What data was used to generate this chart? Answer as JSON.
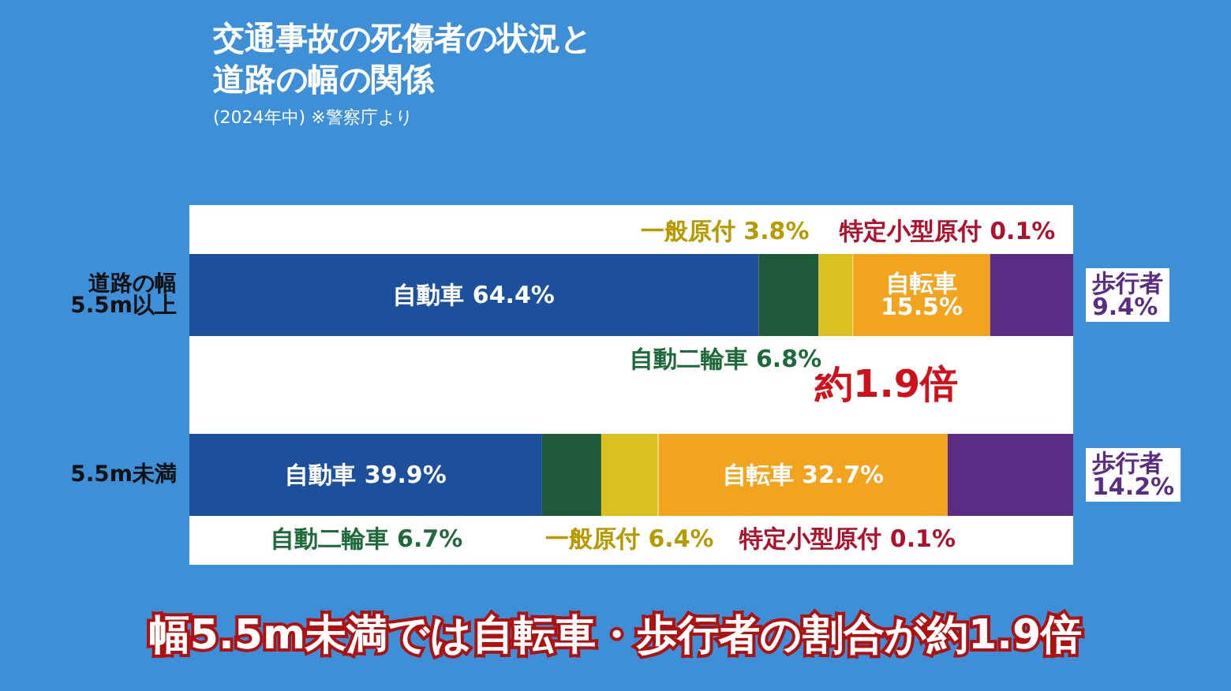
{
  "chart_data": {
    "type": "bar",
    "title": "交通事故の死傷者の状況と道路の幅の関係",
    "subtitle": "(2024年中) ※警察庁より",
    "categories": [
      "道路の幅\n5.5m以上",
      "5.5m未満"
    ],
    "stacked": true,
    "orientation": "horizontal",
    "legend": false,
    "tick_labels": "y",
    "series": [
      {
        "name": "自動車",
        "color": "#1c4f9c",
        "values": [
          64.4,
          39.9
        ],
        "value_labels": [
          "64.4%",
          "39.9%"
        ]
      },
      {
        "name": "自動二輪車",
        "color": "#1e5a3a",
        "values": [
          6.8,
          6.7
        ],
        "value_labels": [
          "6.8%",
          "6.7%"
        ]
      },
      {
        "name": "一般原付",
        "color": "#dcc022",
        "values": [
          3.8,
          6.4
        ],
        "value_labels": [
          "3.8%",
          "6.4%"
        ]
      },
      {
        "name": "特定小型原付",
        "color": "#f2e08a",
        "values": [
          0.1,
          0.1
        ],
        "value_labels": [
          "0.1%",
          "0.1%"
        ]
      },
      {
        "name": "自転車",
        "color": "#f2a41e",
        "values": [
          15.5,
          32.7
        ],
        "value_labels": [
          "15.5%",
          "32.7%"
        ]
      },
      {
        "name": "歩行者",
        "color": "#5b2c83",
        "values": [
          9.4,
          14.2
        ],
        "value_labels": [
          "9.4%",
          "14.2%"
        ]
      }
    ],
    "annotations": [
      "約1.9倍",
      "幅5.5m未満では自転車・歩行者の割合が約1.9倍"
    ]
  }
}
